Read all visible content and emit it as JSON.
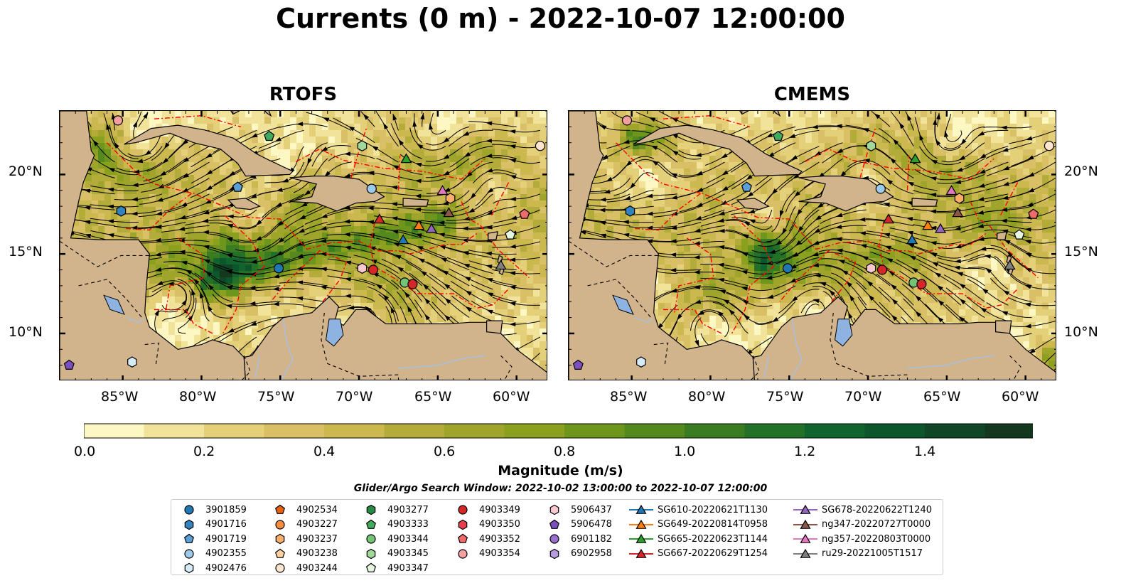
{
  "title": "Currents (0 m) - 2022-10-07 12:00:00",
  "panels": [
    {
      "title": "RTOFS"
    },
    {
      "title": "CMEMS"
    }
  ],
  "map": {
    "lon_ticks": [
      "85°W",
      "80°W",
      "75°W",
      "70°W",
      "65°W",
      "60°W"
    ],
    "lat_ticks": [
      "20°N",
      "15°N",
      "10°N"
    ],
    "extent": {
      "lon": [
        -89,
        -58
      ],
      "lat": [
        7,
        24
      ]
    },
    "land_color": "#d2b48c",
    "eez_color": "#ff0000"
  },
  "colorbar": {
    "label": "Magnitude (m/s)",
    "ticks": [
      "0.0",
      "0.2",
      "0.4",
      "0.6",
      "0.8",
      "1.0",
      "1.2",
      "1.4"
    ],
    "range": [
      0,
      1.6
    ],
    "colors": [
      "#fdf7c3",
      "#f2e39b",
      "#e5d07a",
      "#d9c066",
      "#cbb84f",
      "#b4ac3a",
      "#9fa52b",
      "#8ba01f",
      "#6f961c",
      "#53891d",
      "#3a7c22",
      "#237029",
      "#11642d",
      "#0d552b",
      "#104625",
      "#13381d",
      "#16291a"
    ]
  },
  "search_window": "Glider/Argo Search Window: 2022-10-02 13:00:00 to 2022-10-07 12:00:00",
  "legend": {
    "columns": [
      [
        {
          "label": "3901859",
          "marker": "circle",
          "color": "#1f77b4"
        },
        {
          "label": "4901716",
          "marker": "hexagon",
          "color": "#3282bd"
        },
        {
          "label": "4901719",
          "marker": "pentagon",
          "color": "#5a9ed6"
        },
        {
          "label": "4902355",
          "marker": "circle",
          "color": "#9ecae9"
        },
        {
          "label": "4902476",
          "marker": "hexagon",
          "color": "#d6eaf8"
        }
      ],
      [
        {
          "label": "4902534",
          "marker": "pentagon",
          "color": "#e6600d"
        },
        {
          "label": "4903227",
          "marker": "circle",
          "color": "#fd8d3c"
        },
        {
          "label": "4903237",
          "marker": "hexagon",
          "color": "#fdae6b"
        },
        {
          "label": "4903238",
          "marker": "pentagon",
          "color": "#fdd0a2"
        },
        {
          "label": "4903244",
          "marker": "circle",
          "color": "#fee6ce"
        }
      ],
      [
        {
          "label": "4903277",
          "marker": "hexagon",
          "color": "#238b45"
        },
        {
          "label": "4903333",
          "marker": "pentagon",
          "color": "#41ab5d"
        },
        {
          "label": "4903344",
          "marker": "circle",
          "color": "#74c476"
        },
        {
          "label": "4903345",
          "marker": "hexagon",
          "color": "#a1d99b"
        },
        {
          "label": "4903347",
          "marker": "pentagon",
          "color": "#e5f5e0"
        }
      ],
      [
        {
          "label": "4903349",
          "marker": "circle",
          "color": "#d62728"
        },
        {
          "label": "4903350",
          "marker": "hexagon",
          "color": "#e3404b"
        },
        {
          "label": "4903352",
          "marker": "pentagon",
          "color": "#ef6a6a"
        },
        {
          "label": "4903354",
          "marker": "circle",
          "color": "#f4a0a0"
        }
      ],
      [
        {
          "label": "5906437",
          "marker": "hexagon",
          "color": "#f8c8d0"
        },
        {
          "label": "5906478",
          "marker": "pentagon",
          "color": "#7b4fbd"
        },
        {
          "label": "6901182",
          "marker": "circle",
          "color": "#9a6fd0"
        },
        {
          "label": "6902958",
          "marker": "hexagon",
          "color": "#b79be0"
        }
      ],
      [
        {
          "label": "SG610-20220621T1130",
          "marker": "triangle",
          "color": "#1f77b4"
        },
        {
          "label": "SG649-20220814T0958",
          "marker": "triangle",
          "color": "#ff7f0e"
        },
        {
          "label": "SG665-20220623T1144",
          "marker": "triangle",
          "color": "#2ca02c"
        },
        {
          "label": "SG667-20220629T1254",
          "marker": "triangle",
          "color": "#d62728"
        }
      ],
      [
        {
          "label": "SG678-20220622T1240",
          "marker": "triangle",
          "color": "#9467bd"
        },
        {
          "label": "ng347-20220727T0000",
          "marker": "triangle",
          "color": "#8c564b"
        },
        {
          "label": "ng357-20220803T0000",
          "marker": "triangle",
          "color": "#e377c2"
        },
        {
          "label": "ru29-20221005T1517",
          "marker": "triangle",
          "color": "#7f7f7f"
        }
      ]
    ]
  },
  "markers": [
    {
      "lon": -85.3,
      "lat": 23.4,
      "shape": "circle",
      "color": "#f4a0a0"
    },
    {
      "lon": -75.7,
      "lat": 22.4,
      "shape": "pentagon",
      "color": "#41ab5d"
    },
    {
      "lon": -69.8,
      "lat": 21.8,
      "shape": "hexagon",
      "color": "#a1d99b"
    },
    {
      "lon": -58.5,
      "lat": 21.8,
      "shape": "circle",
      "color": "#fee6ce"
    },
    {
      "lon": -67.0,
      "lat": 21.0,
      "shape": "triangle",
      "color": "#2ca02c"
    },
    {
      "lon": -77.7,
      "lat": 19.2,
      "shape": "pentagon",
      "color": "#5a9ed6"
    },
    {
      "lon": -69.2,
      "lat": 19.1,
      "shape": "circle",
      "color": "#9ecae9"
    },
    {
      "lon": -64.7,
      "lat": 19.0,
      "shape": "triangle",
      "color": "#e377c2"
    },
    {
      "lon": -64.2,
      "lat": 18.5,
      "shape": "hexagon",
      "color": "#fdae6b"
    },
    {
      "lon": -85.1,
      "lat": 17.7,
      "shape": "hexagon",
      "color": "#3282bd"
    },
    {
      "lon": -64.3,
      "lat": 17.6,
      "shape": "triangle",
      "color": "#8c564b"
    },
    {
      "lon": -59.5,
      "lat": 17.5,
      "shape": "pentagon",
      "color": "#ef6a6a"
    },
    {
      "lon": -68.7,
      "lat": 17.2,
      "shape": "triangle",
      "color": "#d62728"
    },
    {
      "lon": -66.2,
      "lat": 16.8,
      "shape": "triangle",
      "color": "#ff7f0e"
    },
    {
      "lon": -65.4,
      "lat": 16.6,
      "shape": "triangle",
      "color": "#9467bd"
    },
    {
      "lon": -60.4,
      "lat": 16.2,
      "shape": "pentagon",
      "color": "#e5f5e0"
    },
    {
      "lon": -67.2,
      "lat": 15.9,
      "shape": "triangle",
      "color": "#1f77b4"
    },
    {
      "lon": -61.0,
      "lat": 14.3,
      "shape": "triangle",
      "color": "#7f7f7f"
    },
    {
      "lon": -75.1,
      "lat": 14.1,
      "shape": "circle",
      "color": "#1f77b4"
    },
    {
      "lon": -69.8,
      "lat": 14.1,
      "shape": "hexagon",
      "color": "#f8c8d0"
    },
    {
      "lon": -69.1,
      "lat": 14.0,
      "shape": "circle",
      "color": "#d62728"
    },
    {
      "lon": -67.1,
      "lat": 13.2,
      "shape": "circle",
      "color": "#74c476"
    },
    {
      "lon": -66.6,
      "lat": 13.1,
      "shape": "circle",
      "color": "#d62728"
    },
    {
      "lon": -84.4,
      "lat": 8.2,
      "shape": "hexagon",
      "color": "#d6eaf8"
    },
    {
      "lon": -88.4,
      "lat": 8.0,
      "shape": "pentagon",
      "color": "#7b4fbd"
    }
  ]
}
